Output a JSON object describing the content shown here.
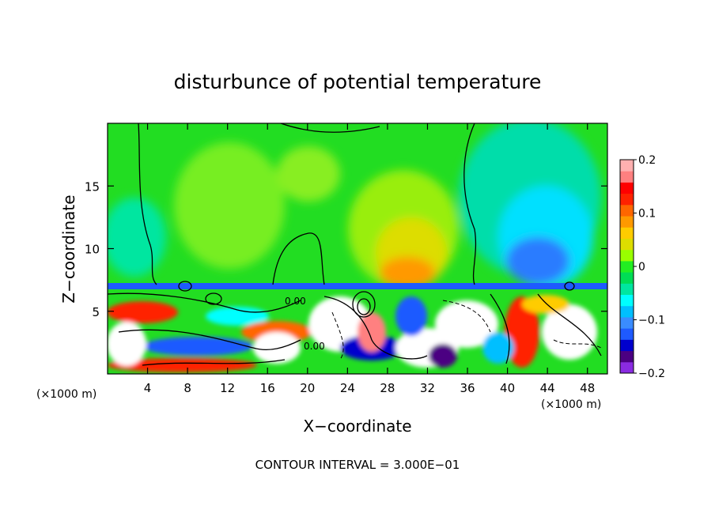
{
  "chart_data": {
    "type": "heatmap",
    "title": "disturbunce of potential temperature",
    "xlabel": "X−coordinate",
    "ylabel": "Z−coordinate",
    "x_unit": "(×1000 m)",
    "y_unit": "(×1000 m)",
    "xlim": [
      0,
      50
    ],
    "ylim": [
      0,
      20
    ],
    "x_ticks": [
      4,
      8,
      12,
      16,
      20,
      24,
      28,
      32,
      36,
      40,
      44,
      48
    ],
    "y_ticks": [
      5,
      10,
      15
    ],
    "colorbar": {
      "range": [
        -0.2,
        0.2
      ],
      "tick_labels": [
        "0.2",
        "0.1",
        "0",
        "−0.1",
        "−0.2"
      ],
      "tick_values": [
        0.2,
        0.1,
        0,
        -0.1,
        -0.2
      ],
      "colors": [
        "#8a2be2",
        "#4b0082",
        "#0000cd",
        "#1e5aff",
        "#3a8cff",
        "#00bfff",
        "#00ffff",
        "#00e6a0",
        "#00dd55",
        "#22ee22",
        "#99ff00",
        "#dddd00",
        "#ffcc00",
        "#ff9900",
        "#ff6600",
        "#ff2200",
        "#ff0000",
        "#ff8080",
        "#ffb0b0"
      ]
    },
    "annotation": "CONTOUR INTERVAL = 3.000E−01",
    "contour_labels": [
      "0.00",
      "0.00"
    ],
    "grid": false
  }
}
